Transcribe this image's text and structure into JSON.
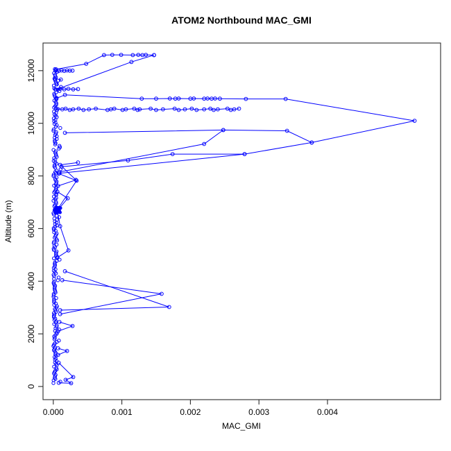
{
  "chart_data": {
    "type": "scatter",
    "title": "ATOM2 Northbound MAC_GMI",
    "xlabel": "MAC_GMI",
    "ylabel": "Altitude (m)",
    "marker": "open-circle",
    "line_style": "solid",
    "series_color": "#0000ff",
    "axis_color": "#2b2b2b",
    "background_color": "#ffffff",
    "grid": "off",
    "legend": "none",
    "xlim": [
      -0.00015,
      0.00565
    ],
    "ylim": [
      -500,
      13050
    ],
    "x_axis": {
      "labels": [
        "0.000",
        "0.001",
        "0.002",
        "0.003",
        "0.004"
      ],
      "values": [
        0,
        0.001,
        0.002,
        0.003,
        0.004
      ]
    },
    "y_axis": {
      "labels": [
        "0",
        "2000",
        "4000",
        "6000",
        "8000",
        "10000",
        "12000"
      ],
      "values": [
        0,
        2000,
        4000,
        6000,
        8000,
        10000,
        12000
      ]
    },
    "column": {
      "comment": "dense near-zero vertical column of overlapping points",
      "x_base": 2e-06,
      "x_jitter": 5e-05,
      "alt_min": 130,
      "alt_max": 12060,
      "count": 230
    },
    "blob": {
      "comment": "solid overlapping cluster at ~6700 m",
      "x_center": 7e-05,
      "alt_center": 6700,
      "x_spread": 9e-05,
      "alt_spread": 200,
      "count": 30
    },
    "paths": [
      {
        "name": "chain-12500",
        "points": [
          [
            4e-05,
            12050
          ],
          [
            0.00048,
            12260
          ],
          [
            0.00074,
            12590
          ],
          [
            0.00086,
            12600
          ],
          [
            0.00099,
            12600
          ],
          [
            0.00116,
            12590
          ],
          [
            0.00124,
            12600
          ],
          [
            0.0013,
            12590
          ],
          [
            0.00135,
            12600
          ],
          [
            0.00147,
            12590
          ]
        ]
      },
      {
        "name": "diagonal-to-12500",
        "points": [
          [
            4e-05,
            11280
          ],
          [
            0.00114,
            12330
          ],
          [
            0.00147,
            12590
          ]
        ]
      },
      {
        "name": "level-12000",
        "points": [
          [
            3e-05,
            12010
          ],
          [
            8e-05,
            11990
          ],
          [
            0.00012,
            12010
          ],
          [
            0.00016,
            11990
          ],
          [
            0.0002,
            12010
          ],
          [
            0.00024,
            12000
          ],
          [
            0.00028,
            12000
          ]
        ]
      },
      {
        "name": "level-11700",
        "points": [
          [
            3e-05,
            11690
          ],
          [
            0.00011,
            11660
          ],
          [
            5e-05,
            11480
          ]
        ]
      },
      {
        "name": "level-11300",
        "points": [
          [
            3e-05,
            11290
          ],
          [
            0.0001,
            11310
          ],
          [
            0.00016,
            11290
          ],
          [
            0.00022,
            11310
          ],
          [
            0.00029,
            11290
          ],
          [
            0.00036,
            11300
          ]
        ]
      },
      {
        "name": "level-11000-far-loop",
        "points": [
          [
            4e-05,
            10940
          ],
          [
            0.00017,
            11080
          ],
          [
            0.00129,
            10935
          ],
          [
            0.0015,
            10935
          ],
          [
            0.0017,
            10940
          ],
          [
            0.00178,
            10935
          ],
          [
            0.00183,
            10940
          ],
          [
            0.002,
            10935
          ],
          [
            0.00205,
            10940
          ],
          [
            0.0022,
            10935
          ],
          [
            0.00225,
            10940
          ],
          [
            0.00231,
            10935
          ],
          [
            0.00236,
            10940
          ],
          [
            0.00243,
            10935
          ],
          [
            0.00281,
            10925
          ],
          [
            0.00339,
            10925
          ],
          [
            0.00527,
            10095
          ],
          [
            0.00377,
            9270
          ],
          [
            0.00279,
            8830
          ],
          [
            9e-05,
            8100
          ]
        ]
      },
      {
        "name": "chain-10550",
        "points": [
          [
            4e-05,
            10560
          ],
          [
            0.00013,
            10530
          ],
          [
            0.00018,
            10555
          ],
          [
            0.00024,
            10505
          ],
          [
            0.00029,
            10530
          ],
          [
            0.00037,
            10555
          ],
          [
            0.00044,
            10505
          ],
          [
            0.00052,
            10530
          ],
          [
            0.00062,
            10555
          ],
          [
            0.00079,
            10505
          ],
          [
            0.00084,
            10530
          ],
          [
            0.00089,
            10555
          ],
          [
            0.00101,
            10505
          ],
          [
            0.00106,
            10530
          ],
          [
            0.00118,
            10555
          ],
          [
            0.00123,
            10505
          ],
          [
            0.00126,
            10530
          ],
          [
            0.00142,
            10555
          ],
          [
            0.0015,
            10505
          ],
          [
            0.0016,
            10530
          ],
          [
            0.00177,
            10555
          ],
          [
            0.00183,
            10505
          ],
          [
            0.00192,
            10530
          ],
          [
            0.00202,
            10555
          ],
          [
            0.00209,
            10505
          ],
          [
            0.0022,
            10530
          ],
          [
            0.00229,
            10555
          ],
          [
            0.00234,
            10505
          ],
          [
            0.0024,
            10530
          ],
          [
            0.00254,
            10555
          ],
          [
            0.00259,
            10505
          ],
          [
            0.00264,
            10530
          ],
          [
            0.00271,
            10555
          ]
        ]
      },
      {
        "name": "loop-9700",
        "points": [
          [
            0.00017,
            9640
          ],
          [
            0.00248,
            9745
          ],
          [
            0.00341,
            9715
          ],
          [
            0.00377,
            9270
          ]
        ]
      },
      {
        "name": "line-9200",
        "points": [
          [
            9e-05,
            8150
          ],
          [
            0.0022,
            9215
          ],
          [
            0.00248,
            9745
          ]
        ]
      },
      {
        "name": "line-8800",
        "points": [
          [
            0.00279,
            8830
          ],
          [
            0.00174,
            8830
          ],
          [
            0.00109,
            8590
          ],
          [
            0.00012,
            8350
          ]
        ]
      },
      {
        "name": "zigzag-8200",
        "points": [
          [
            0.00036,
            8510
          ],
          [
            0.0001,
            8420
          ],
          [
            0.00033,
            7850
          ],
          [
            7e-05,
            7620
          ]
        ]
      },
      {
        "name": "fan-7800",
        "points": [
          [
            6e-05,
            6720
          ],
          [
            0.00034,
            7820
          ],
          [
            8e-05,
            8090
          ]
        ]
      },
      {
        "name": "blob-up",
        "points": [
          [
            6e-05,
            6680
          ],
          [
            0.00021,
            7150
          ],
          [
            6e-05,
            7400
          ]
        ]
      },
      {
        "name": "blob-down",
        "points": [
          [
            6e-05,
            6660
          ],
          [
            0.0001,
            6090
          ],
          [
            0.00022,
            5170
          ],
          [
            6e-05,
            4900
          ]
        ]
      },
      {
        "name": "triangle-a",
        "points": [
          [
            0.00017,
            4380
          ],
          [
            0.00169,
            3020
          ],
          [
            0.0001,
            2900
          ]
        ]
      },
      {
        "name": "triangle-b",
        "points": [
          [
            0.00013,
            4040
          ],
          [
            0.00158,
            3520
          ],
          [
            0.0001,
            2750
          ]
        ]
      },
      {
        "name": "wiggle-2300",
        "points": [
          [
            9e-05,
            2450
          ],
          [
            0.00028,
            2300
          ],
          [
            7e-05,
            2100
          ]
        ]
      },
      {
        "name": "wiggle-1300",
        "points": [
          [
            7e-05,
            1450
          ],
          [
            0.0002,
            1350
          ],
          [
            7e-05,
            1200
          ]
        ]
      },
      {
        "name": "bottom-approach",
        "points": [
          [
            8e-05,
            900
          ],
          [
            0.00029,
            360
          ],
          [
            0.00018,
            255
          ],
          [
            0.00026,
            125
          ],
          [
            8e-05,
            140
          ]
        ]
      }
    ]
  }
}
